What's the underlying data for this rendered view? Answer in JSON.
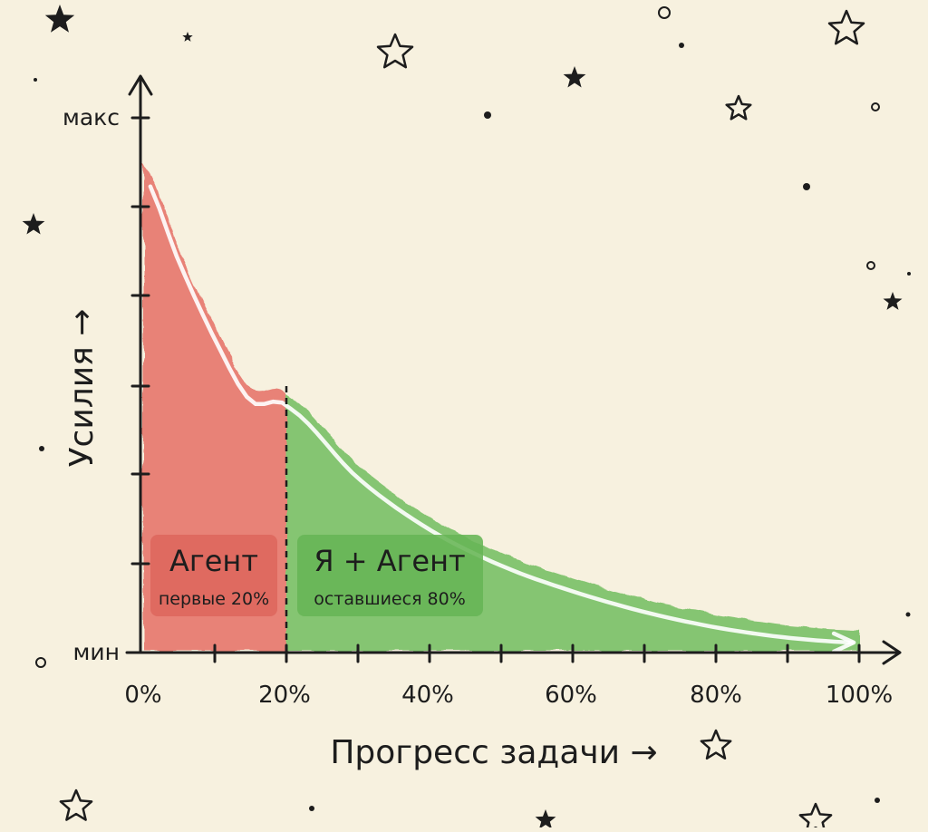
{
  "chart_data": {
    "type": "area",
    "x_axis": {
      "label": "Прогресс задачи →",
      "tick_labels": [
        "0%",
        "20%",
        "40%",
        "60%",
        "80%",
        "100%"
      ],
      "range": [
        0,
        100
      ]
    },
    "y_axis": {
      "label": "Усилия →",
      "tick_labels": [
        "мин",
        "макс"
      ],
      "range": [
        0,
        100
      ]
    },
    "curve": {
      "x": [
        0,
        5,
        10,
        15,
        20,
        30,
        40,
        50,
        60,
        70,
        80,
        90,
        100
      ],
      "y": [
        95,
        78,
        63,
        51,
        50,
        36,
        26,
        19,
        14,
        10,
        7,
        5,
        4
      ]
    },
    "split_at": 20,
    "regions": [
      {
        "name": "Агент",
        "sublabel": "первые 20%",
        "x_range": [
          0,
          20
        ],
        "color": "#e56e64"
      },
      {
        "name": "Я + Агент",
        "sublabel": "оставшиеся 80%",
        "x_range": [
          20,
          100
        ],
        "color": "#72bd5f"
      }
    ],
    "grid": false,
    "legend": "none"
  },
  "colors": {
    "background": "#f7f1df",
    "ink": "#1d1d1d",
    "red_region": "#e56e64",
    "red_label_bg": "#de6a60",
    "green_region": "#72bd5f",
    "green_label_bg": "#6dba5a",
    "trend_arrow": "#ffffff"
  }
}
